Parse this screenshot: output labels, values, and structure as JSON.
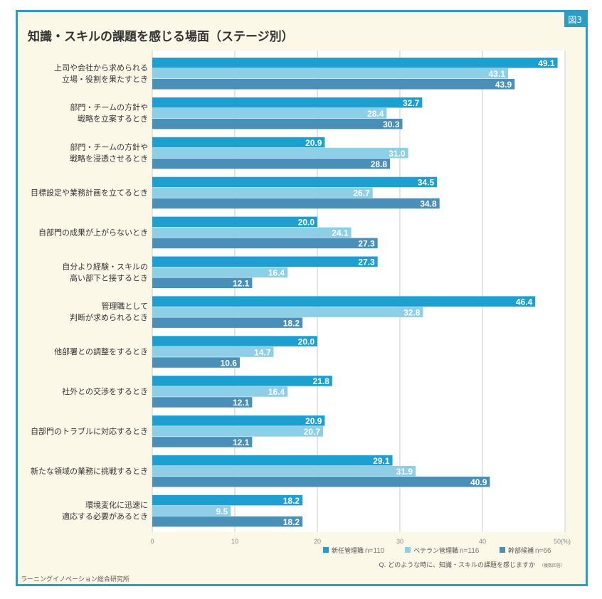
{
  "figure_label": "図3",
  "footer": "ラーニングイノベーション総合研究所",
  "chart_data": {
    "type": "bar",
    "orientation": "horizontal",
    "title": "知識・スキルの課題を感じる場面（ステージ別）",
    "categories": [
      [
        "上司や会社から求められる",
        "立場・役割を果たすとき"
      ],
      [
        "部門・チームの方針や",
        "戦略を立案するとき"
      ],
      [
        "部門・チームの方針や",
        "戦略を浸透させるとき"
      ],
      [
        "目標設定や業務計画を立てるとき"
      ],
      [
        "自部門の成果が上がらないとき"
      ],
      [
        "自分より経験・スキルの",
        "高い部下と接するとき"
      ],
      [
        "管理職として",
        "判断が求められるとき"
      ],
      [
        "他部署との調整をするとき"
      ],
      [
        "社外との交渉をするとき"
      ],
      [
        "自部門のトラブルに対応するとき"
      ],
      [
        "新たな領域の業務に挑戦するとき"
      ],
      [
        "環境変化に迅速に",
        "適応する必要があるとき"
      ]
    ],
    "series": [
      {
        "name": "新任管理職",
        "n": "n=110",
        "color": "#1f9fd0",
        "values": [
          49.1,
          32.7,
          20.9,
          34.5,
          20.0,
          27.3,
          46.4,
          20.0,
          21.8,
          20.9,
          29.1,
          18.2
        ]
      },
      {
        "name": "ベテラン管理職",
        "n": "n=116",
        "color": "#8dcfe6",
        "values": [
          43.1,
          28.4,
          31.0,
          26.7,
          24.1,
          16.4,
          32.8,
          14.7,
          16.4,
          20.7,
          31.9,
          9.5
        ]
      },
      {
        "name": "幹部候補",
        "n": "n=66",
        "color": "#4a8fb8",
        "values": [
          43.9,
          30.3,
          28.8,
          34.8,
          27.3,
          12.1,
          18.2,
          10.6,
          12.1,
          12.1,
          40.9,
          18.2
        ]
      }
    ],
    "xlim": [
      0,
      50
    ],
    "xticks": [
      "0",
      "10",
      "20",
      "30",
      "40",
      "50(%)"
    ],
    "xtick_values": [
      0,
      10,
      20,
      30,
      40,
      50
    ],
    "grid": true,
    "legend_placement": "bottom-right",
    "note": "Q. どのような時に、知識・スキルの課題を感じますか",
    "note_small": "（複数回答）"
  }
}
